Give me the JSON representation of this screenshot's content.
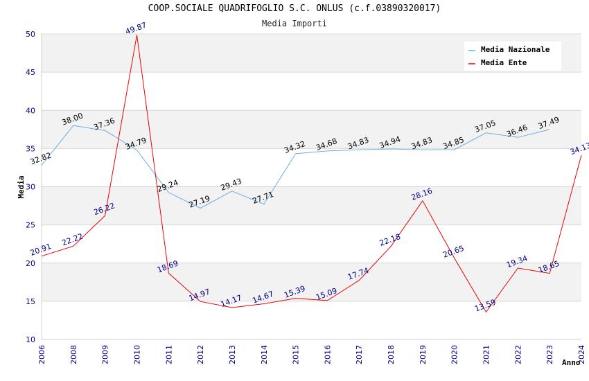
{
  "chart_data": {
    "type": "line",
    "title": "COOP.SOCIALE QUADRIFOGLIO S.C. ONLUS (c.f.03890320017)",
    "subtitle": "Media Importi",
    "xlabel": "Anno",
    "ylabel": "Media",
    "ylim": [
      10,
      50
    ],
    "yticks": [
      "10",
      "15",
      "20",
      "25",
      "30",
      "35",
      "40",
      "45",
      "50"
    ],
    "categories": [
      "2006",
      "2008",
      "2009",
      "2010",
      "2011",
      "2012",
      "2013",
      "2014",
      "2015",
      "2016",
      "2017",
      "2018",
      "2019",
      "2020",
      "2021",
      "2022",
      "2023",
      "2024"
    ],
    "grid": true,
    "legend_position": "top-right",
    "series": [
      {
        "name": "Media Nazionale",
        "color": "#6aaee8",
        "values": [
          32.82,
          38.0,
          37.36,
          34.79,
          29.24,
          27.19,
          29.43,
          27.71,
          34.32,
          34.68,
          34.83,
          34.94,
          34.83,
          34.85,
          37.05,
          36.46,
          37.49,
          null
        ],
        "labels": [
          "32.82",
          "38.00",
          "37.36",
          "34.79",
          "29.24",
          "27.19",
          "29.43",
          "27.71",
          "34.32",
          "34.68",
          "34.83",
          "34.94",
          "34.83",
          "34.85",
          "37.05",
          "36.46",
          "37.49",
          ""
        ]
      },
      {
        "name": "Media Ente",
        "color": "#ee0000",
        "values": [
          20.91,
          22.22,
          26.22,
          49.87,
          18.69,
          14.97,
          14.17,
          14.67,
          15.39,
          15.09,
          17.74,
          22.18,
          28.16,
          20.65,
          13.59,
          19.34,
          18.65,
          34.13
        ],
        "labels": [
          "20.91",
          "22.22",
          "26.22",
          "49.87",
          "18.69",
          "14.97",
          "14.17",
          "14.67",
          "15.39",
          "15.09",
          "17.74",
          "22.18",
          "28.16",
          "20.65",
          "13.59",
          "19.34",
          "18.65",
          "34.13"
        ]
      }
    ]
  }
}
